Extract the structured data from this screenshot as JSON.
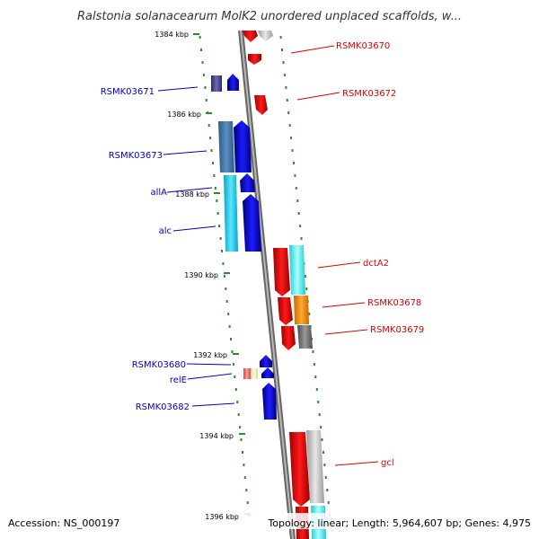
{
  "title": "Ralstonia solanacearum MolK2 unordered unplaced scaffolds, w...",
  "footer": {
    "accession": "Accession: NS_000197",
    "summary": "Topology: linear; Length: 5,964,607 bp; Genes: 4,975"
  },
  "scale": {
    "ticks": [
      "1384 kbp",
      "1386 kbp",
      "1388 kbp",
      "1390 kbp",
      "1392 kbp",
      "1394 kbp",
      "1396 kbp"
    ]
  },
  "genes": {
    "left": [
      "RSMK03671",
      "RSMK03673",
      "allA",
      "alc",
      "RSMK03680",
      "relE",
      "RSMK03682"
    ],
    "right": [
      "RSMK03670",
      "RSMK03672",
      "dctA2",
      "RSMK03678",
      "RSMK03679",
      "gcl"
    ]
  },
  "colors": {
    "backbone": "#888888",
    "forward_label": "#0000cc",
    "reverse_label": "#dd0000",
    "tick": "#2e8b2e"
  }
}
